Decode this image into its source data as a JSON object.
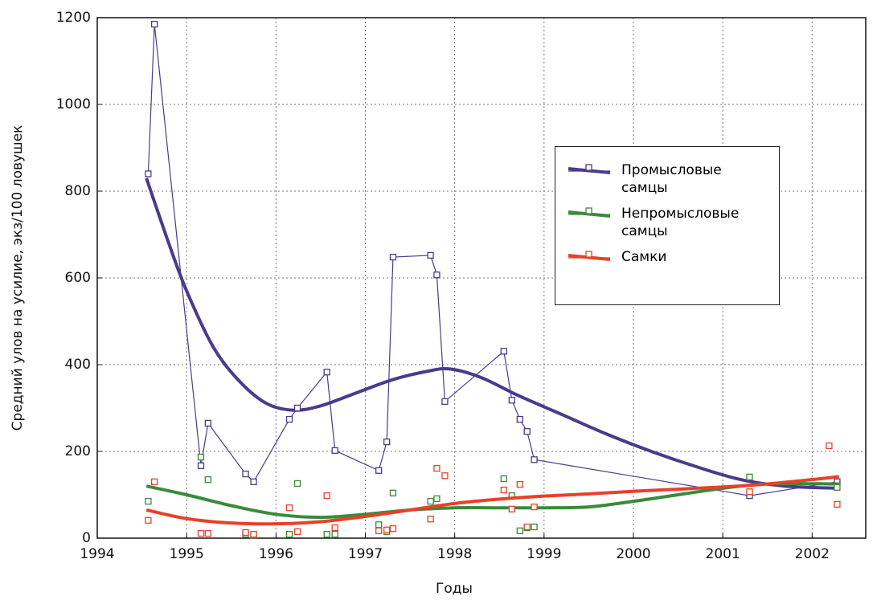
{
  "chart_data": {
    "type": "scatter",
    "x_label": "Годы",
    "y_label": "Средний улов на усилие, экз/100 ловушек",
    "xlim": [
      1994,
      2002.6
    ],
    "ylim": [
      0,
      1200
    ],
    "xticks": [
      1994,
      1995,
      1996,
      1997,
      1998,
      1999,
      2000,
      2001,
      2002
    ],
    "yticks": [
      0,
      200,
      400,
      600,
      800,
      1000,
      1200
    ],
    "grid": true,
    "legend_position": "upper right",
    "series": [
      {
        "name": "Промысловые самцы",
        "color": "#4b3a8c",
        "connect": true,
        "x": [
          1994.57,
          1994.64,
          1995.16,
          1995.24,
          1995.66,
          1995.75,
          1996.15,
          1996.24,
          1996.57,
          1996.66,
          1997.15,
          1997.24,
          1997.31,
          1997.73,
          1997.8,
          1997.89,
          1998.55,
          1998.64,
          1998.73,
          1998.81,
          1998.89,
          2001.3,
          2002.28
        ],
        "values": [
          840,
          1185,
          167,
          265,
          148,
          130,
          274,
          300,
          383,
          202,
          156,
          222,
          648,
          652,
          607,
          315,
          431,
          318,
          274,
          246,
          181,
          98,
          130
        ],
        "trend_x": [
          1994.55,
          1994.8,
          1995.0,
          1995.3,
          1995.6,
          1995.9,
          1996.2,
          1996.5,
          1996.9,
          1997.3,
          1997.7,
          1997.95,
          1998.3,
          1998.7,
          1999.2,
          1999.7,
          2000.2,
          2000.7,
          2001.2,
          2001.7,
          2002.3
        ],
        "trend_values": [
          830,
          680,
          570,
          440,
          360,
          310,
          295,
          305,
          335,
          365,
          385,
          390,
          370,
          330,
          285,
          240,
          200,
          165,
          135,
          120,
          115
        ]
      },
      {
        "name": "Непромысловые самцы",
        "color": "#3a8a3a",
        "connect": false,
        "x": [
          1994.57,
          1995.16,
          1995.24,
          1995.66,
          1995.75,
          1996.15,
          1996.24,
          1996.57,
          1996.66,
          1997.15,
          1997.24,
          1997.31,
          1997.73,
          1997.8,
          1998.55,
          1998.64,
          1998.73,
          1998.81,
          1998.89,
          2001.3,
          2002.28
        ],
        "values": [
          85,
          187,
          135,
          9,
          7,
          9,
          126,
          9,
          9,
          31,
          15,
          104,
          85,
          91,
          137,
          98,
          17,
          24,
          26,
          141,
          117
        ],
        "trend_x": [
          1994.55,
          1995.0,
          1995.5,
          1996.0,
          1996.5,
          1997.0,
          1997.5,
          1998.0,
          1998.5,
          1999.0,
          1999.5,
          2000.0,
          2000.5,
          2001.0,
          2001.5,
          2002.3
        ],
        "trend_values": [
          120,
          100,
          75,
          55,
          48,
          55,
          65,
          70,
          70,
          70,
          72,
          85,
          100,
          115,
          125,
          125
        ]
      },
      {
        "name": "Самки",
        "color": "#e8402a",
        "connect": false,
        "x": [
          1994.57,
          1994.64,
          1995.16,
          1995.24,
          1995.66,
          1995.75,
          1996.15,
          1996.24,
          1996.57,
          1996.66,
          1997.15,
          1997.24,
          1997.31,
          1997.73,
          1997.8,
          1997.89,
          1998.55,
          1998.64,
          1998.73,
          1998.81,
          1998.89,
          2001.3,
          2002.19,
          2002.28
        ],
        "values": [
          41,
          130,
          11,
          11,
          13,
          9,
          70,
          15,
          98,
          24,
          17,
          19,
          22,
          44,
          161,
          144,
          111,
          67,
          124,
          26,
          72,
          107,
          213,
          78
        ],
        "trend_x": [
          1994.55,
          1995.0,
          1995.5,
          1996.0,
          1996.5,
          1997.0,
          1997.5,
          1998.0,
          1998.5,
          1999.0,
          1999.5,
          2000.0,
          2000.5,
          2001.0,
          2001.5,
          2002.0,
          2002.3
        ],
        "trend_values": [
          65,
          45,
          35,
          33,
          38,
          50,
          65,
          80,
          90,
          97,
          102,
          108,
          113,
          118,
          125,
          135,
          142
        ]
      }
    ]
  }
}
